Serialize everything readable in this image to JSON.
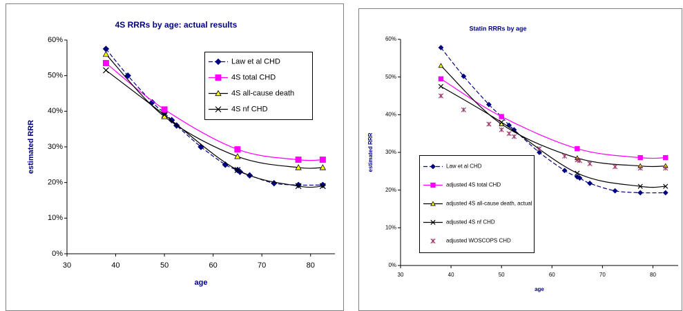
{
  "chart_data": [
    {
      "type": "line",
      "title": "4S RRRs by age: actual results",
      "x_label": "age",
      "y_label": "estimated RRR",
      "xlim": [
        30,
        85
      ],
      "xticks": [
        30,
        40,
        50,
        60,
        70,
        80
      ],
      "ylim": [
        0,
        60
      ],
      "yticks": [
        {
          "value": 0,
          "label": "0%"
        },
        {
          "value": 10,
          "label": "10%"
        },
        {
          "value": 20,
          "label": "20%"
        },
        {
          "value": 30,
          "label": "30%"
        },
        {
          "value": 40,
          "label": "40%"
        },
        {
          "value": 50,
          "label": "50%"
        },
        {
          "value": 60,
          "label": "60%"
        }
      ],
      "legend": "top-right",
      "series": [
        {
          "name": "Law et al CHD",
          "color": "#000080",
          "marker": "diamond",
          "marker_color": "#000080",
          "dash": true,
          "line": true,
          "x": [
            38,
            42.5,
            47.5,
            50,
            51.5,
            52.5,
            57.5,
            62.5,
            65,
            65.5,
            67.5,
            72.5,
            77.5,
            82.5
          ],
          "values": [
            57.5,
            50,
            42.5,
            39.5,
            37.5,
            36,
            30,
            25,
            23.5,
            23,
            22,
            19.8,
            19.3,
            19.3
          ]
        },
        {
          "name": "4S total CHD",
          "color": "#ff00ff",
          "marker": "square",
          "marker_color": "#ff00ff",
          "dash": false,
          "line": true,
          "x": [
            38,
            50,
            65,
            77.5,
            82.5
          ],
          "values": [
            53.5,
            40.5,
            29.3,
            26.4,
            26.4
          ]
        },
        {
          "name": "4S all-cause death",
          "color": "#000000",
          "marker": "triangle",
          "marker_color": "#ffff00",
          "dash": false,
          "line": true,
          "x": [
            38,
            50,
            65,
            77.5,
            82.5
          ],
          "values": [
            56,
            38.5,
            27.3,
            24.2,
            24.2
          ]
        },
        {
          "name": "4S nf CHD",
          "color": "#000000",
          "marker": "x",
          "marker_color": "#000000",
          "dash": false,
          "line": true,
          "x": [
            38,
            50,
            65,
            77.5,
            82.5
          ],
          "values": [
            51.5,
            39,
            23.5,
            19,
            19
          ]
        }
      ]
    },
    {
      "type": "line",
      "title": "Statin RRRs by age",
      "x_label": "age",
      "y_label": "estimated RRR",
      "xlim": [
        30,
        85
      ],
      "xticks": [
        30,
        40,
        50,
        60,
        70,
        80
      ],
      "ylim": [
        0,
        60
      ],
      "yticks": [
        {
          "value": 0,
          "label": "0%"
        },
        {
          "value": 10,
          "label": "10%"
        },
        {
          "value": 20,
          "label": "20%"
        },
        {
          "value": 30,
          "label": "30%"
        },
        {
          "value": 40,
          "label": "40%"
        },
        {
          "value": 50,
          "label": "50%"
        },
        {
          "value": 60,
          "label": "60%"
        }
      ],
      "legend": "bottom-left",
      "series": [
        {
          "name": "Law et al CHD",
          "color": "#000080",
          "marker": "diamond",
          "marker_color": "#000080",
          "dash": true,
          "line": true,
          "x": [
            38,
            42.5,
            47.5,
            50,
            51.5,
            52.5,
            57.5,
            62.5,
            65,
            65.5,
            67.5,
            72.5,
            77.5,
            82.5
          ],
          "values": [
            57.8,
            50.2,
            42.7,
            39.5,
            37.2,
            36,
            30,
            25.2,
            23.5,
            23.2,
            21.8,
            19.8,
            19.3,
            19.3
          ]
        },
        {
          "name": "adjusted 4S total CHD",
          "color": "#ff00ff",
          "marker": "square",
          "marker_color": "#ff00ff",
          "dash": false,
          "line": true,
          "x": [
            38,
            50,
            65,
            77.5,
            82.5
          ],
          "values": [
            49.5,
            39.5,
            31,
            28.6,
            28.6
          ]
        },
        {
          "name": "adjusted 4S all-cause death, actual",
          "color": "#000000",
          "marker": "triangle",
          "marker_color": "#ffff00",
          "dash": false,
          "line": true,
          "x": [
            38,
            50,
            65,
            77.5,
            82.5
          ],
          "values": [
            53,
            37.5,
            28.5,
            26.4,
            26.4
          ]
        },
        {
          "name": "adjusted 4S nf CHD",
          "color": "#000000",
          "marker": "x",
          "marker_color": "#000000",
          "dash": false,
          "line": true,
          "x": [
            38,
            50,
            65,
            77.5,
            82.5
          ],
          "values": [
            47.5,
            38,
            24.5,
            21,
            21
          ]
        },
        {
          "name": "adjusted WOSCOPS CHD",
          "color": "#993366",
          "marker": "star",
          "marker_color": "#993366",
          "dash": false,
          "line": false,
          "x": [
            38,
            42.5,
            47.5,
            50,
            51.5,
            52.5,
            57.5,
            62.5,
            65,
            65.5,
            67.5,
            72.5,
            77.5,
            82.5
          ],
          "values": [
            45,
            41.3,
            37.5,
            36,
            35,
            34.2,
            31,
            29,
            28,
            27.8,
            27,
            26.2,
            25.8,
            25.8
          ]
        }
      ]
    }
  ]
}
